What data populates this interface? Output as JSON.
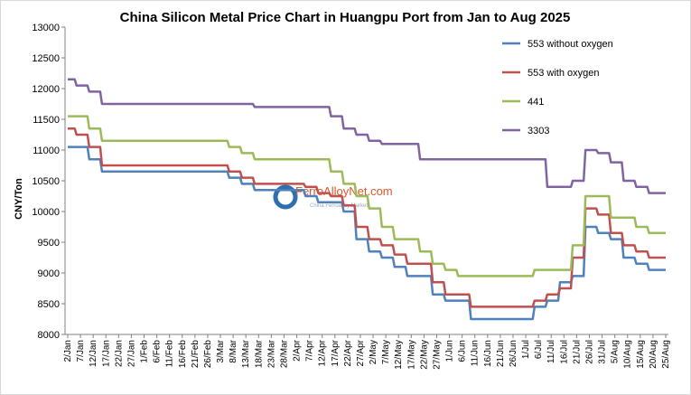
{
  "chart_data": {
    "type": "line",
    "title": "China Silicon Metal Price Chart in Huangpu Port from Jan to Aug 2025",
    "ylabel": "CNY/Ton",
    "xlabel": "",
    "ylim": [
      8000,
      13000
    ],
    "yticks": [
      8000,
      8500,
      9000,
      9500,
      10000,
      10500,
      11000,
      11500,
      12000,
      12500,
      13000
    ],
    "grid": false,
    "legend_position": "right",
    "watermark": {
      "title": "FerroAlloyNet.com",
      "subtitle": "China Ferroalloy Market"
    },
    "x": [
      "2/Jan",
      "7/Jan",
      "12/Jan",
      "17/Jan",
      "22/Jan",
      "27/Jan",
      "1/Feb",
      "6/Feb",
      "11/Feb",
      "16/Feb",
      "21/Feb",
      "26/Feb",
      "3/Mar",
      "8/Mar",
      "13/Mar",
      "18/Mar",
      "23/Mar",
      "28/Mar",
      "2/Apr",
      "7/Apr",
      "12/Apr",
      "17/Apr",
      "22/Apr",
      "27/Apr",
      "2/May",
      "7/May",
      "12/May",
      "17/May",
      "22/May",
      "27/May",
      "1/Jun",
      "6/Jun",
      "11/Jun",
      "16/Jun",
      "21/Jun",
      "26/Jun",
      "1/Jul",
      "6/Jul",
      "11/Jul",
      "16/Jul",
      "21/Jul",
      "26/Jul",
      "31/Jul",
      "5/Aug",
      "10/Aug",
      "15/Aug",
      "20/Aug",
      "25/Aug"
    ],
    "series": [
      {
        "name": "553 without oxygen",
        "color": "#4f81bd",
        "values": [
          11050,
          11050,
          10850,
          10650,
          10650,
          10650,
          10650,
          10650,
          10650,
          10650,
          10650,
          10650,
          10650,
          10550,
          10450,
          10350,
          10350,
          10350,
          10350,
          10250,
          10150,
          10150,
          10000,
          9550,
          9350,
          9250,
          9100,
          8950,
          8950,
          8650,
          8550,
          8550,
          8250,
          8250,
          8250,
          8250,
          8250,
          8450,
          8550,
          8850,
          8950,
          9750,
          9650,
          9550,
          9250,
          9150,
          9050,
          9050
        ]
      },
      {
        "name": "553 with oxygen",
        "color": "#c0504d",
        "values": [
          11350,
          11250,
          11050,
          10750,
          10750,
          10750,
          10750,
          10750,
          10750,
          10750,
          10750,
          10750,
          10750,
          10650,
          10550,
          10450,
          10450,
          10450,
          10450,
          10400,
          10300,
          10250,
          10100,
          9750,
          9550,
          9450,
          9300,
          9150,
          9150,
          8850,
          8650,
          8650,
          8450,
          8450,
          8450,
          8450,
          8450,
          8550,
          8650,
          8750,
          9250,
          10050,
          9950,
          9650,
          9450,
          9350,
          9250,
          9250
        ]
      },
      {
        "name": "441",
        "color": "#9bbb59",
        "values": [
          11550,
          11550,
          11350,
          11150,
          11150,
          11150,
          11150,
          11150,
          11150,
          11150,
          11150,
          11150,
          11150,
          11050,
          10950,
          10850,
          10850,
          10850,
          10850,
          10850,
          10850,
          10650,
          10450,
          10250,
          10050,
          9750,
          9550,
          9550,
          9350,
          9150,
          9050,
          8950,
          8950,
          8950,
          8950,
          8950,
          8950,
          9050,
          9050,
          9050,
          9450,
          10250,
          10250,
          9900,
          9900,
          9750,
          9650,
          9650
        ]
      },
      {
        "name": "3303",
        "color": "#8064a2",
        "values": [
          12150,
          12050,
          11950,
          11750,
          11750,
          11750,
          11750,
          11750,
          11750,
          11750,
          11750,
          11750,
          11750,
          11750,
          11750,
          11700,
          11700,
          11700,
          11700,
          11700,
          11700,
          11550,
          11350,
          11250,
          11150,
          11100,
          11100,
          11100,
          10850,
          10850,
          10850,
          10850,
          10850,
          10850,
          10850,
          10850,
          10850,
          10850,
          10400,
          10400,
          10500,
          11000,
          10950,
          10800,
          10500,
          10400,
          10300,
          10300
        ]
      }
    ]
  }
}
